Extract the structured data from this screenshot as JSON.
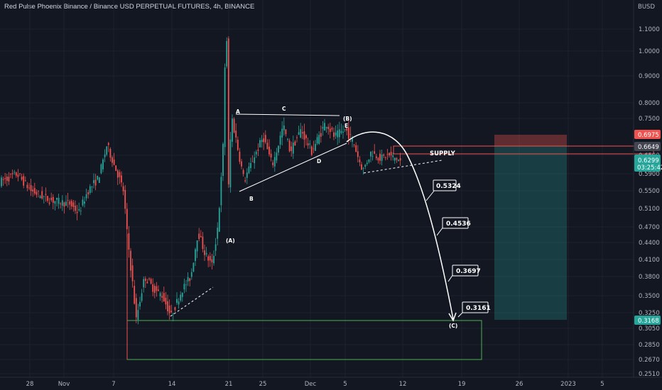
{
  "title": "Red Pulse Phoenix Binance / Binance USD PERPETUAL FUTURES, 4h, BINANCE",
  "currency": "BUSD",
  "colors": {
    "bg": "#131722",
    "up": "#26a69a",
    "down": "#ef5350",
    "grid": "#1e222d",
    "text": "#b2b5be"
  },
  "chart_data": {
    "type": "candlestick",
    "x_axis_labels": [
      "28",
      "Nov",
      "7",
      "14",
      "21",
      "25",
      "Dec",
      "5",
      "12",
      "19",
      "26",
      "2023",
      "5"
    ],
    "y_axis_labels": [
      "1.1000",
      "1.0000",
      "0.9000",
      "0.8000",
      "0.7500",
      "0.6500",
      "0.5900",
      "0.5500",
      "0.5100",
      "0.4700",
      "0.4400",
      "0.4100",
      "0.3800",
      "0.3500",
      "0.3250",
      "0.3050",
      "0.2850",
      "0.2670",
      "0.2510"
    ],
    "price_badges": [
      {
        "value": "0.6975",
        "color": "#ef5350"
      },
      {
        "value": "0.6649",
        "color": "#434651"
      },
      {
        "value": "0.6299",
        "subtext": "03:25:42",
        "color": "#26a69a"
      },
      {
        "value": "0.3168",
        "color": "#26a69a"
      }
    ],
    "wave_labels": [
      "(A)",
      "A",
      "B",
      "C",
      "D",
      "E",
      "(B)",
      "(C)"
    ],
    "annotations": [
      "SUPPLY"
    ],
    "projection_targets": [
      "0.5324",
      "0.4536",
      "0.3697",
      "0.3161"
    ],
    "approx_key_prices": {
      "start": 0.57,
      "nov7_high": 0.68,
      "nov8_low": 0.315,
      "nov21_spike_high": 1.15,
      "triangle_top": 0.76,
      "last": 0.6299
    }
  }
}
